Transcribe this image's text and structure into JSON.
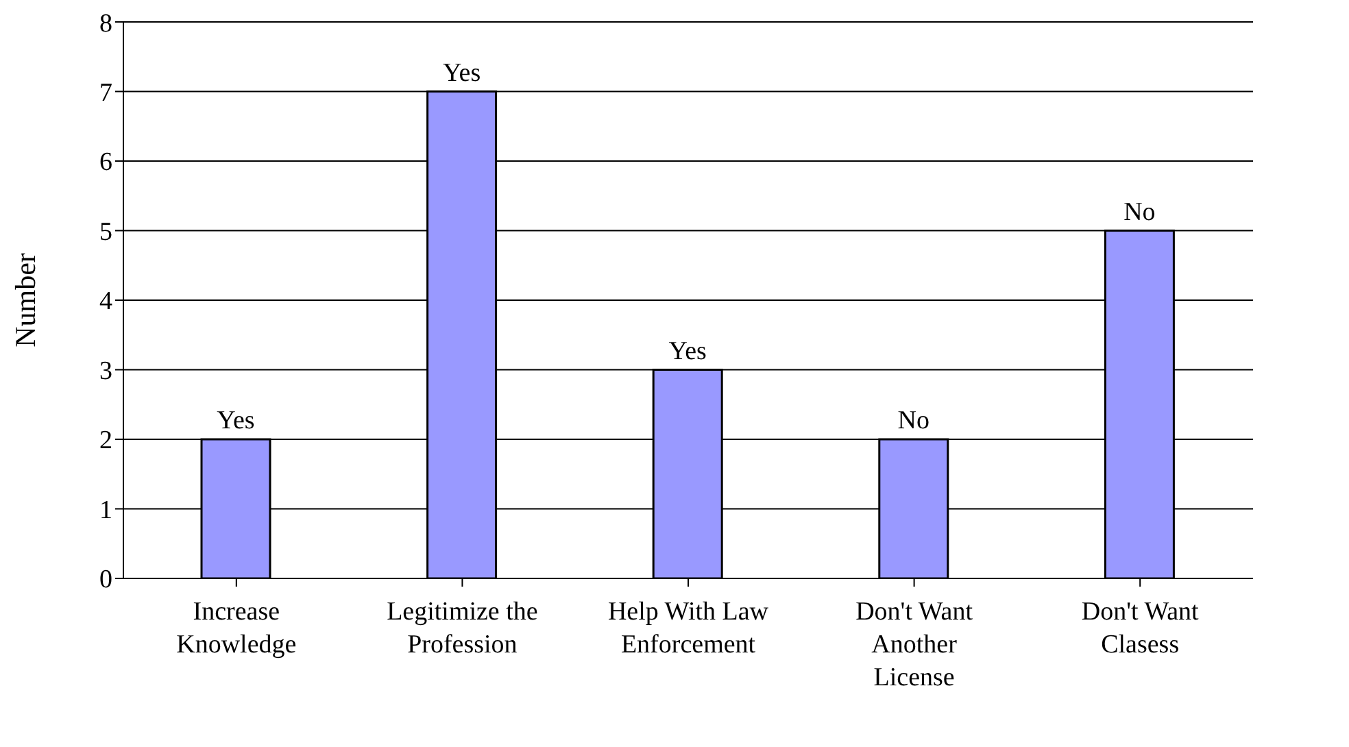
{
  "chart_data": {
    "type": "bar",
    "ylabel": "Number",
    "categories": [
      "Increase Knowledge",
      "Legitimize the Profession",
      "Help With Law Enforcement",
      "Don't Want Another License",
      "Don't Want Clasess"
    ],
    "values": [
      2,
      7,
      3,
      2,
      5
    ],
    "value_labels": [
      "Yes",
      "Yes",
      "Yes",
      "No",
      "No"
    ],
    "color": "#9999ff",
    "ylim": [
      0,
      8
    ],
    "yticks": [
      0,
      1,
      2,
      3,
      4,
      5,
      6,
      7,
      8
    ],
    "grid": "y"
  }
}
